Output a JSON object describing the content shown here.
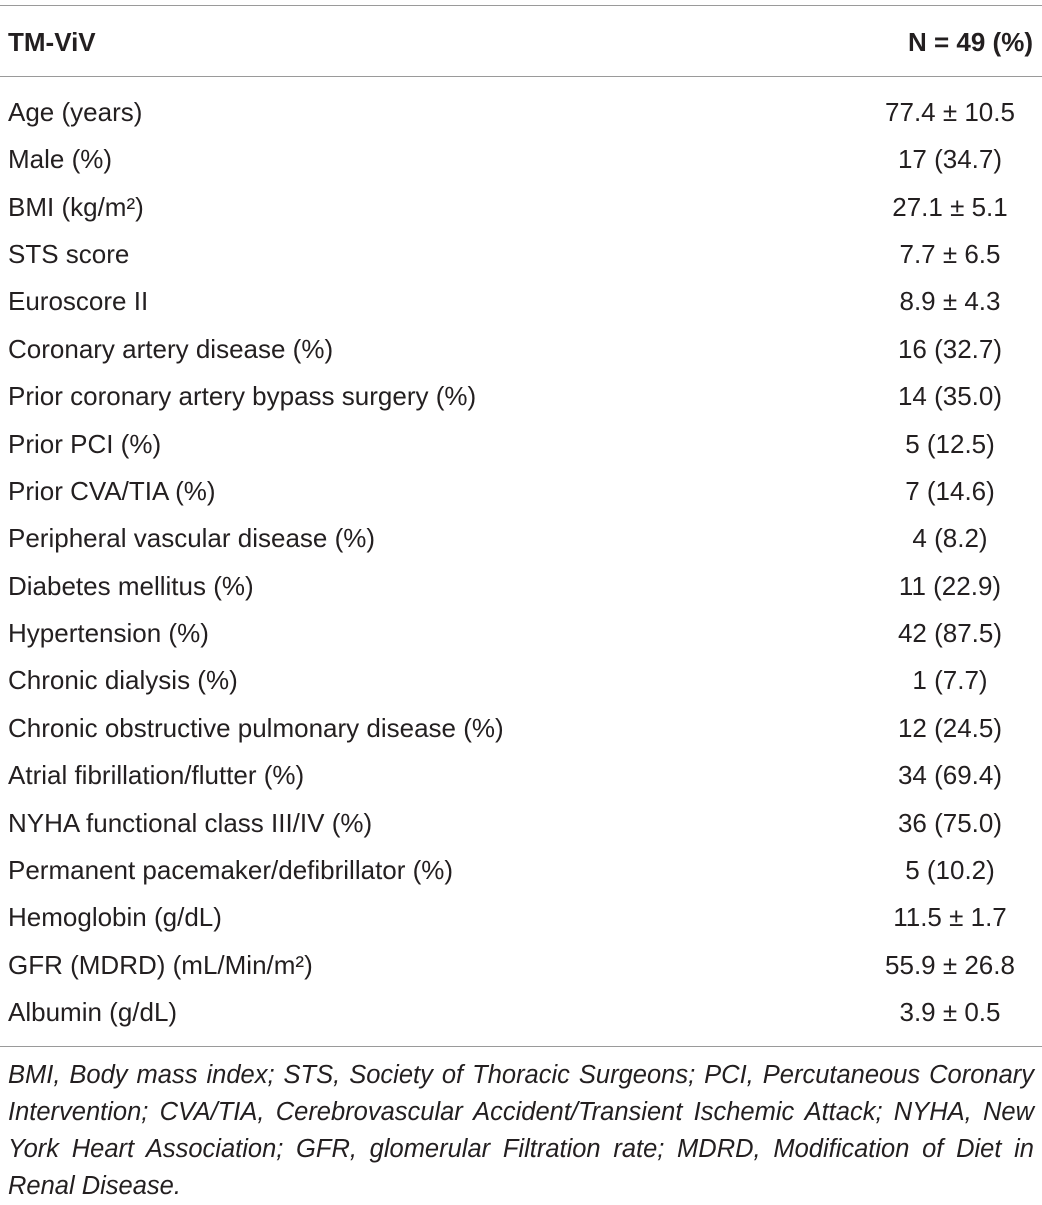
{
  "table": {
    "header": [
      "TM-ViV",
      "N = 49 (%)"
    ],
    "rows": [
      [
        "Age (years)",
        "77.4 ± 10.5"
      ],
      [
        "Male (%)",
        "17 (34.7)"
      ],
      [
        "BMI (kg/m²)",
        "27.1 ± 5.1"
      ],
      [
        "STS score",
        "7.7 ± 6.5"
      ],
      [
        "Euroscore II",
        "8.9 ± 4.3"
      ],
      [
        "Coronary artery disease (%)",
        "16 (32.7)"
      ],
      [
        "Prior coronary artery bypass surgery (%)",
        "14 (35.0)"
      ],
      [
        "Prior PCI (%)",
        "5 (12.5)"
      ],
      [
        "Prior CVA/TIA (%)",
        "7 (14.6)"
      ],
      [
        "Peripheral vascular disease (%)",
        "4 (8.2)"
      ],
      [
        "Diabetes mellitus (%)",
        "11 (22.9)"
      ],
      [
        "Hypertension (%)",
        "42 (87.5)"
      ],
      [
        "Chronic dialysis (%)",
        "1 (7.7)"
      ],
      [
        "Chronic obstructive pulmonary disease (%)",
        "12 (24.5)"
      ],
      [
        "Atrial fibrillation/flutter (%)",
        "34 (69.4)"
      ],
      [
        "NYHA functional class III/IV (%)",
        "36 (75.0)"
      ],
      [
        "Permanent pacemaker/defibrillator (%)",
        "5 (10.2)"
      ],
      [
        "Hemoglobin (g/dL)",
        "11.5 ± 1.7"
      ],
      [
        "GFR (MDRD) (mL/Min/m²)",
        "55.9 ± 26.8"
      ],
      [
        "Albumin (g/dL)",
        "3.9 ± 0.5"
      ]
    ],
    "footnote": "BMI, Body mass index; STS, Society of Thoracic Surgeons; PCI, Percutaneous Coronary Intervention; CVA/TIA, Cerebrovascular Accident/Transient Ischemic Attack; NYHA, New York Heart Association; GFR, glomerular Filtration rate; MDRD, Modification of Diet in Renal Disease."
  }
}
